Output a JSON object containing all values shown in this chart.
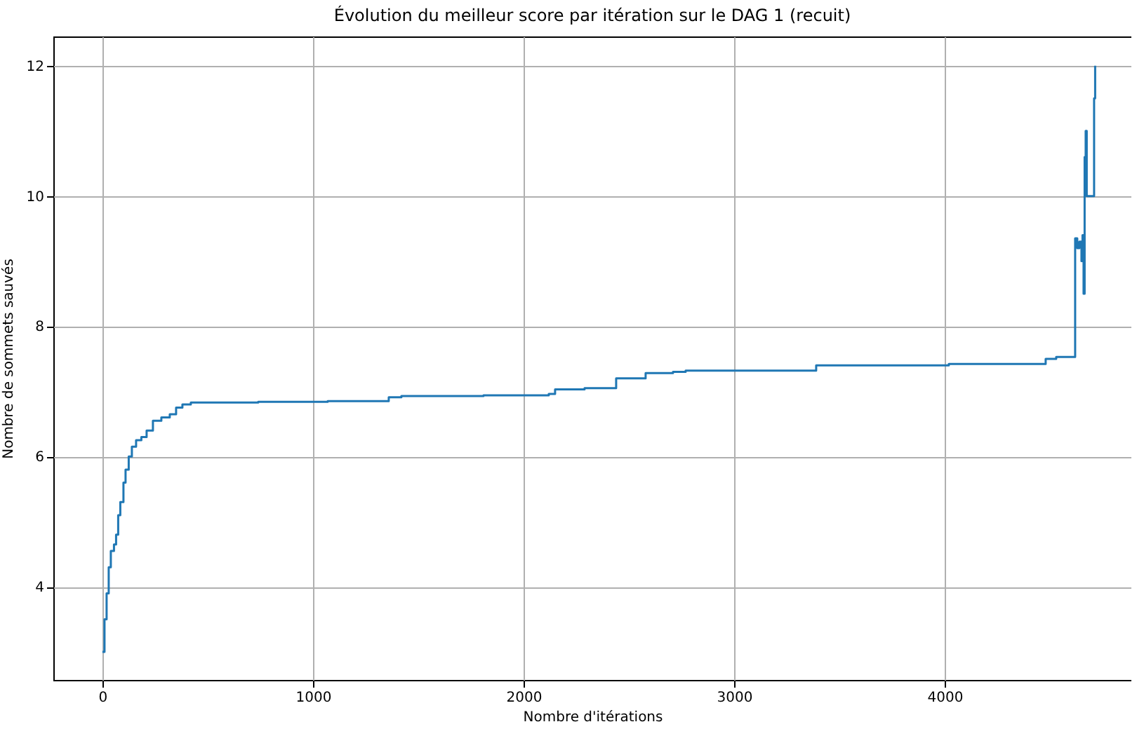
{
  "chart_data": {
    "type": "step",
    "title": "Évolution du meilleur score par itération sur le DAG 1 (recuit)",
    "xlabel": "Nombre d'itérations",
    "ylabel": "Nombre de sommets sauvés",
    "x": [
      0,
      10,
      20,
      30,
      40,
      55,
      65,
      75,
      85,
      100,
      110,
      125,
      140,
      160,
      185,
      210,
      240,
      280,
      320,
      350,
      380,
      420,
      740,
      1070,
      1360,
      1420,
      1810,
      2120,
      2150,
      2290,
      2440,
      2580,
      2710,
      2770,
      3390,
      4020,
      4480,
      4530,
      4620,
      4630,
      4640,
      4650,
      4655,
      4660,
      4665,
      4670,
      4675,
      4680,
      4710,
      4715
    ],
    "series": [
      {
        "color": "#1f77b4",
        "values": [
          3.0,
          3.5,
          3.9,
          4.3,
          4.55,
          4.65,
          4.8,
          5.1,
          5.3,
          5.6,
          5.8,
          6.0,
          6.15,
          6.25,
          6.3,
          6.4,
          6.55,
          6.6,
          6.65,
          6.75,
          6.8,
          6.83,
          6.84,
          6.85,
          6.91,
          6.93,
          6.94,
          6.96,
          7.03,
          7.05,
          7.2,
          7.28,
          7.3,
          7.32,
          7.4,
          7.42,
          7.5,
          7.53,
          9.35,
          9.2,
          9.3,
          9.0,
          9.4,
          8.5,
          10.6,
          11.0,
          10.0,
          10.0,
          11.5,
          12.0
        ]
      }
    ],
    "xlim": [
      -233,
      4887
    ],
    "ylim": [
      2.57,
      12.45
    ],
    "xticks": [
      0,
      1000,
      2000,
      3000,
      4000
    ],
    "yticks": [
      4,
      6,
      8,
      10,
      12
    ],
    "grid": true,
    "legend": false
  }
}
